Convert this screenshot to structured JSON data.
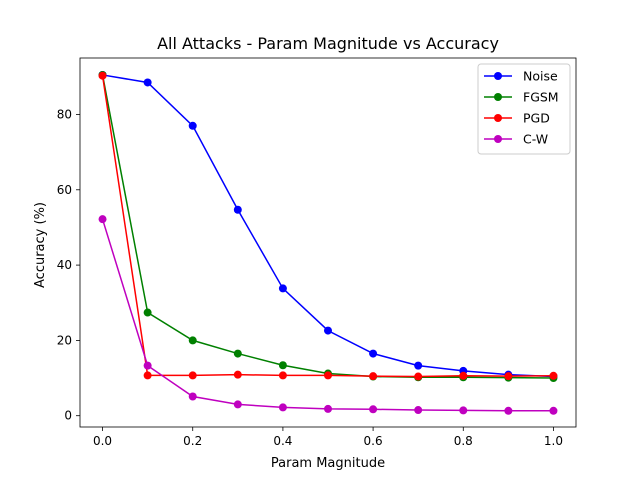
{
  "chart_data": {
    "type": "line",
    "title": "All Attacks - Param Magnitude vs Accuracy",
    "xlabel": "Param Magnitude",
    "ylabel": "Accuracy (%)",
    "xlim": [
      -0.05,
      1.05
    ],
    "ylim": [
      -3,
      95
    ],
    "xticks": [
      0.0,
      0.2,
      0.4,
      0.6,
      0.8,
      1.0
    ],
    "xtick_labels": [
      "0.0",
      "0.2",
      "0.4",
      "0.6",
      "0.8",
      "1.0"
    ],
    "yticks": [
      0,
      20,
      40,
      60,
      80
    ],
    "ytick_labels": [
      "0",
      "20",
      "40",
      "60",
      "80"
    ],
    "grid": false,
    "legend_position": "top-right",
    "x": [
      0.0,
      0.1,
      0.2,
      0.3,
      0.4,
      0.5,
      0.6,
      0.7,
      0.8,
      0.9,
      1.0
    ],
    "series": [
      {
        "name": "Noise",
        "color": "#0000ff",
        "values": [
          90.5,
          88.5,
          77.0,
          54.7,
          33.8,
          22.6,
          16.5,
          13.3,
          11.9,
          10.9,
          10.4
        ]
      },
      {
        "name": "FGSM",
        "color": "#008000",
        "values": [
          90.5,
          27.4,
          20.0,
          16.5,
          13.4,
          11.2,
          10.4,
          10.2,
          10.2,
          10.1,
          10.0
        ]
      },
      {
        "name": "PGD",
        "color": "#ff0000",
        "values": [
          90.3,
          10.7,
          10.7,
          10.9,
          10.7,
          10.7,
          10.5,
          10.4,
          10.6,
          10.5,
          10.6
        ]
      },
      {
        "name": "C-W",
        "color": "#bf00bf",
        "values": [
          52.2,
          13.3,
          5.1,
          3.0,
          2.2,
          1.8,
          1.7,
          1.5,
          1.4,
          1.3,
          1.3
        ]
      }
    ]
  }
}
